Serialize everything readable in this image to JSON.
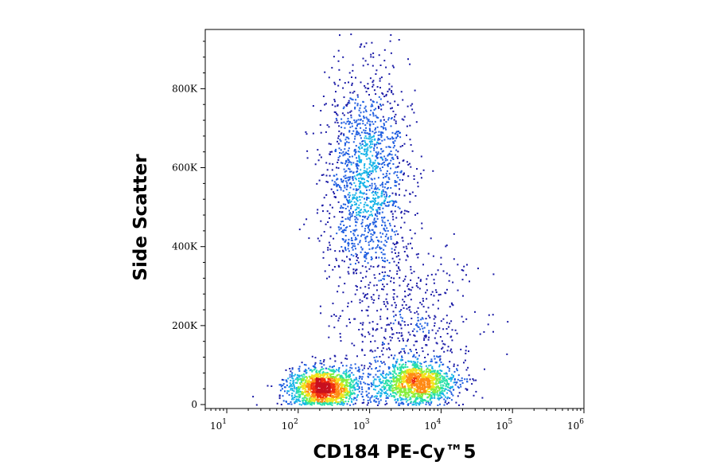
{
  "chart_data": {
    "type": "scatter",
    "title": "",
    "xlabel": "CD184 PE-Cy™5",
    "ylabel": "Side Scatter",
    "x_scale": "log",
    "xlim": [
      5,
      1000000
    ],
    "ylim": [
      -10000,
      950000
    ],
    "grid": false,
    "legend": "none",
    "x_ticks": [
      {
        "value": 10,
        "base": "10",
        "exp": "1"
      },
      {
        "value": 100,
        "base": "10",
        "exp": "2"
      },
      {
        "value": 1000,
        "base": "10",
        "exp": "3"
      },
      {
        "value": 10000,
        "base": "10",
        "exp": "4"
      },
      {
        "value": 100000,
        "base": "10",
        "exp": "5"
      },
      {
        "value": 1000000,
        "base": "10",
        "exp": "6"
      }
    ],
    "y_ticks": [
      {
        "value": 0,
        "label": "0"
      },
      {
        "value": 200000,
        "label": "200K"
      },
      {
        "value": 400000,
        "label": "400K"
      },
      {
        "value": 600000,
        "label": "600K"
      },
      {
        "value": 800000,
        "label": "800K"
      }
    ],
    "density_colormap": [
      "#1a1aa6",
      "#1f5ee0",
      "#18b4e8",
      "#27e0a8",
      "#86ee3c",
      "#f2e21a",
      "#ff8a14",
      "#ef2c10",
      "#c8101e"
    ],
    "populations": [
      {
        "log10_x_center": 2.35,
        "y_center": 45000,
        "log10_x_sd": 0.24,
        "y_sd": 26000,
        "count": 1500
      },
      {
        "log10_x_center": 3.65,
        "y_center": 55000,
        "log10_x_sd": 0.3,
        "y_sd": 26000,
        "count": 1300
      },
      {
        "log10_x_center": 2.95,
        "y_center": 580000,
        "log10_x_sd": 0.3,
        "y_sd": 130000,
        "count": 1500
      },
      {
        "log10_x_center": 3.5,
        "y_center": 200000,
        "log10_x_sd": 0.5,
        "y_sd": 100000,
        "count": 550
      }
    ]
  }
}
